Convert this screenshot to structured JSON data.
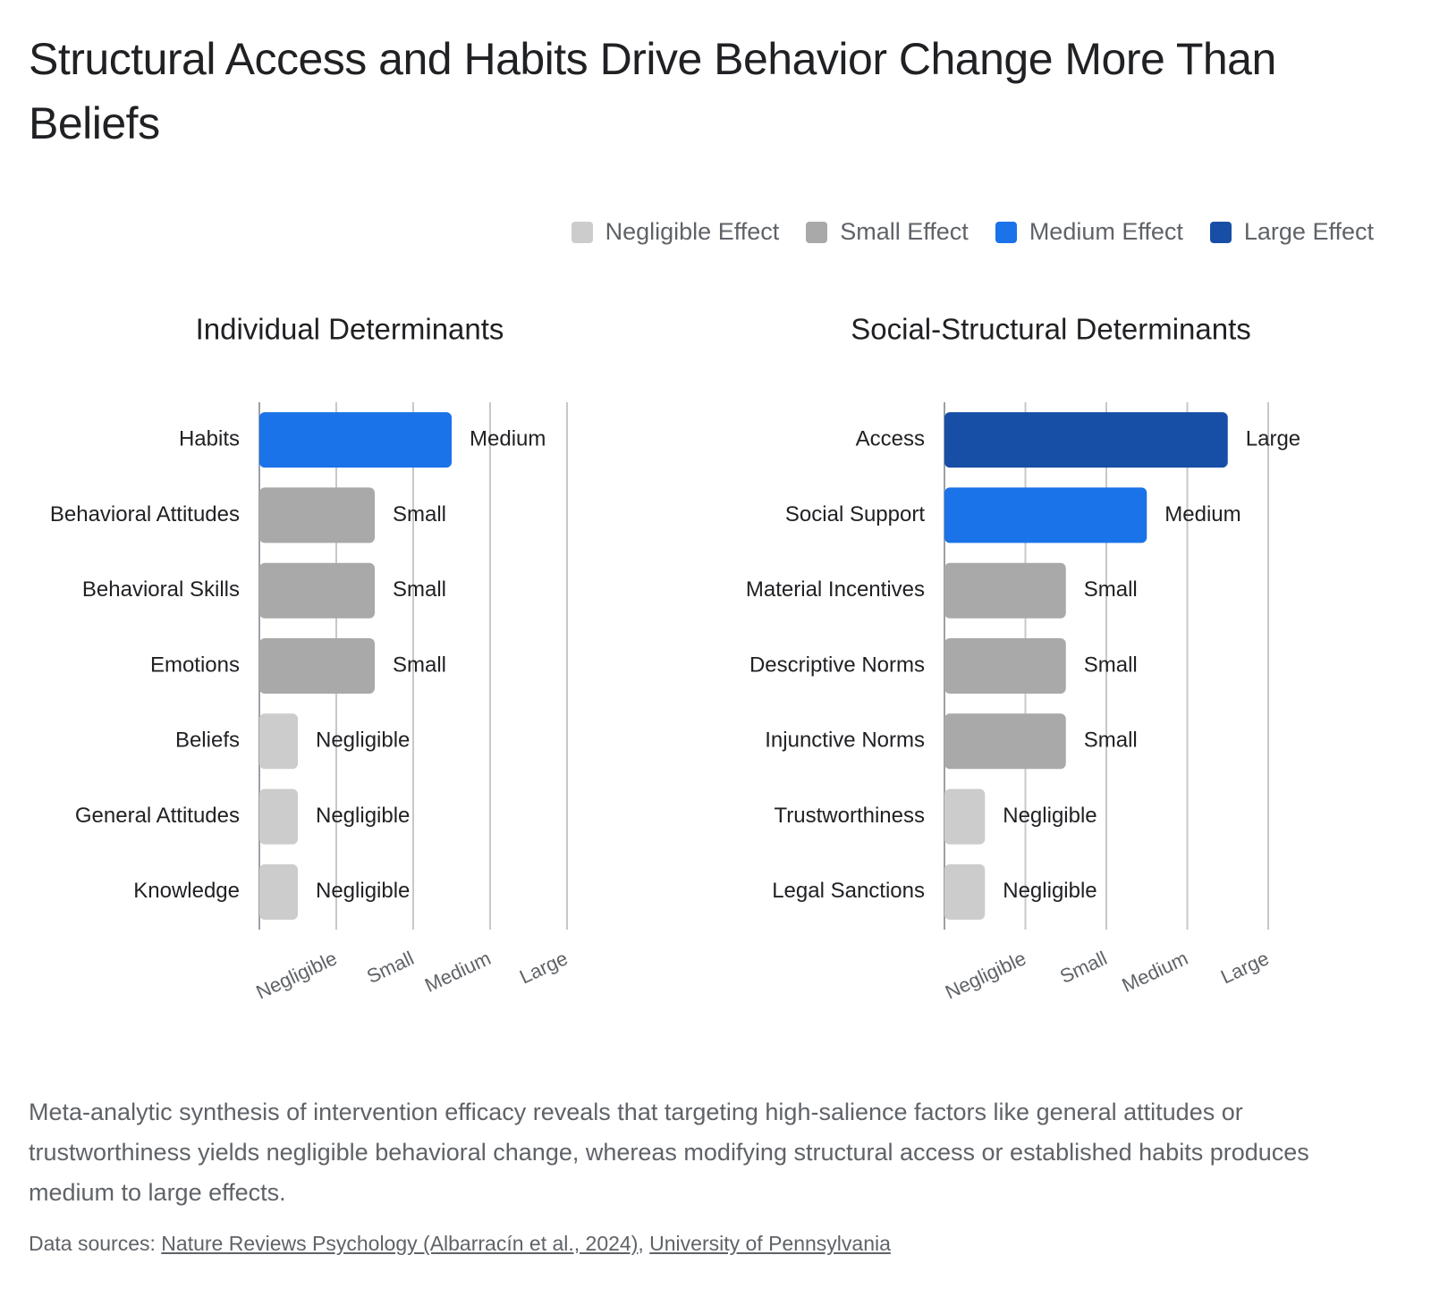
{
  "title": "Structural Access and Habits Drive Behavior Change More Than Beliefs",
  "legend": [
    {
      "name": "Negligible Effect",
      "color": "#cccccc"
    },
    {
      "name": "Small Effect",
      "color": "#a9a9a9"
    },
    {
      "name": "Medium Effect",
      "color": "#1a73e8"
    },
    {
      "name": "Large Effect",
      "color": "#174ea6"
    }
  ],
  "chart_data": [
    {
      "type": "bar",
      "orientation": "horizontal",
      "title": "Individual Determinants",
      "categories": [
        "Habits",
        "Behavioral Attitudes",
        "Behavioral Skills",
        "Emotions",
        "Beliefs",
        "General Attitudes",
        "Knowledge"
      ],
      "values": [
        2.5,
        1.5,
        1.5,
        1.5,
        0.5,
        0.5,
        0.5
      ],
      "value_labels": [
        "Medium",
        "Small",
        "Small",
        "Small",
        "Negligible",
        "Negligible",
        "Negligible"
      ],
      "colors": [
        "#1a73e8",
        "#a9a9a9",
        "#a9a9a9",
        "#a9a9a9",
        "#cccccc",
        "#cccccc",
        "#cccccc"
      ],
      "xlim": [
        0,
        4
      ],
      "xticks": [
        {
          "value": 1,
          "label": "Negligible"
        },
        {
          "value": 2,
          "label": "Small"
        },
        {
          "value": 3,
          "label": "Medium"
        },
        {
          "value": 4,
          "label": "Large"
        }
      ],
      "grid": true
    },
    {
      "type": "bar",
      "orientation": "horizontal",
      "title": "Social-Structural Determinants",
      "categories": [
        "Access",
        "Social Support",
        "Material Incentives",
        "Descriptive Norms",
        "Injunctive Norms",
        "Trustworthiness",
        "Legal Sanctions"
      ],
      "values": [
        3.5,
        2.5,
        1.5,
        1.5,
        1.5,
        0.5,
        0.5
      ],
      "value_labels": [
        "Large",
        "Medium",
        "Small",
        "Small",
        "Small",
        "Negligible",
        "Negligible"
      ],
      "colors": [
        "#174ea6",
        "#1a73e8",
        "#a9a9a9",
        "#a9a9a9",
        "#a9a9a9",
        "#cccccc",
        "#cccccc"
      ],
      "xlim": [
        0,
        4
      ],
      "xticks": [
        {
          "value": 1,
          "label": "Negligible"
        },
        {
          "value": 2,
          "label": "Small"
        },
        {
          "value": 3,
          "label": "Medium"
        },
        {
          "value": 4,
          "label": "Large"
        }
      ],
      "grid": true
    }
  ],
  "description": "Meta-analytic synthesis of intervention efficacy reveals that targeting high-salience factors like general attitudes or trustworthiness yields negligible behavioral change, whereas modifying structural access or established habits produces medium to large effects.",
  "sources": {
    "prefix": "Data sources:",
    "links": [
      "Nature Reviews Psychology (Albarracín et al., 2024)",
      "University of Pennsylvania"
    ]
  }
}
